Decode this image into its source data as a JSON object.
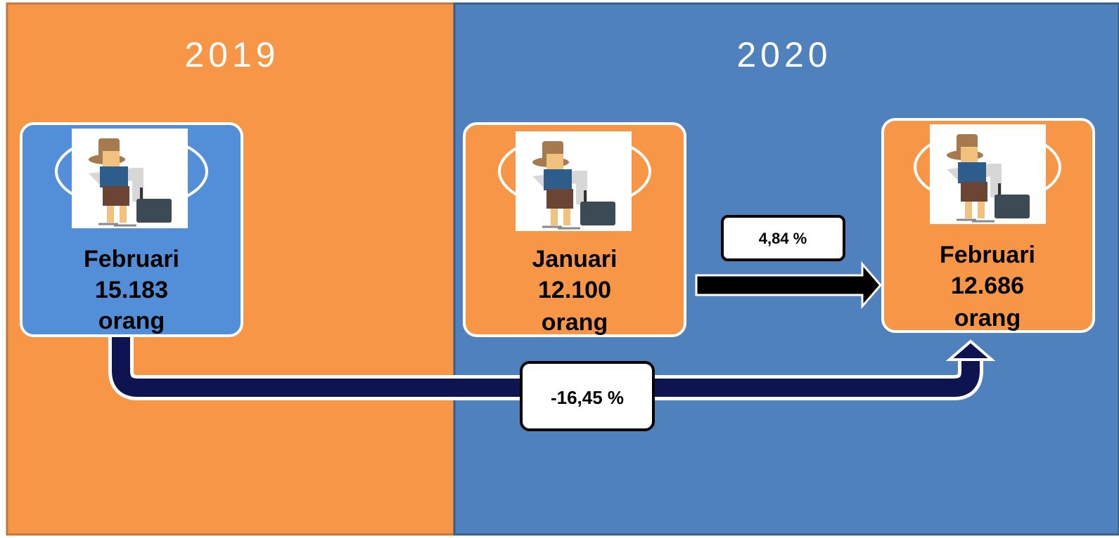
{
  "panels": [
    {
      "year": "2019"
    },
    {
      "year": "2020"
    }
  ],
  "cards": [
    {
      "month": "Februari",
      "count": "15.183",
      "unit": "orang"
    },
    {
      "month": "Januari",
      "count": "12.100",
      "unit": "orang"
    },
    {
      "month": "Februari",
      "count": "12.686",
      "unit": "orang"
    }
  ],
  "changes": [
    {
      "label": "4,84 %"
    },
    {
      "label": "-16,45 %"
    }
  ]
}
